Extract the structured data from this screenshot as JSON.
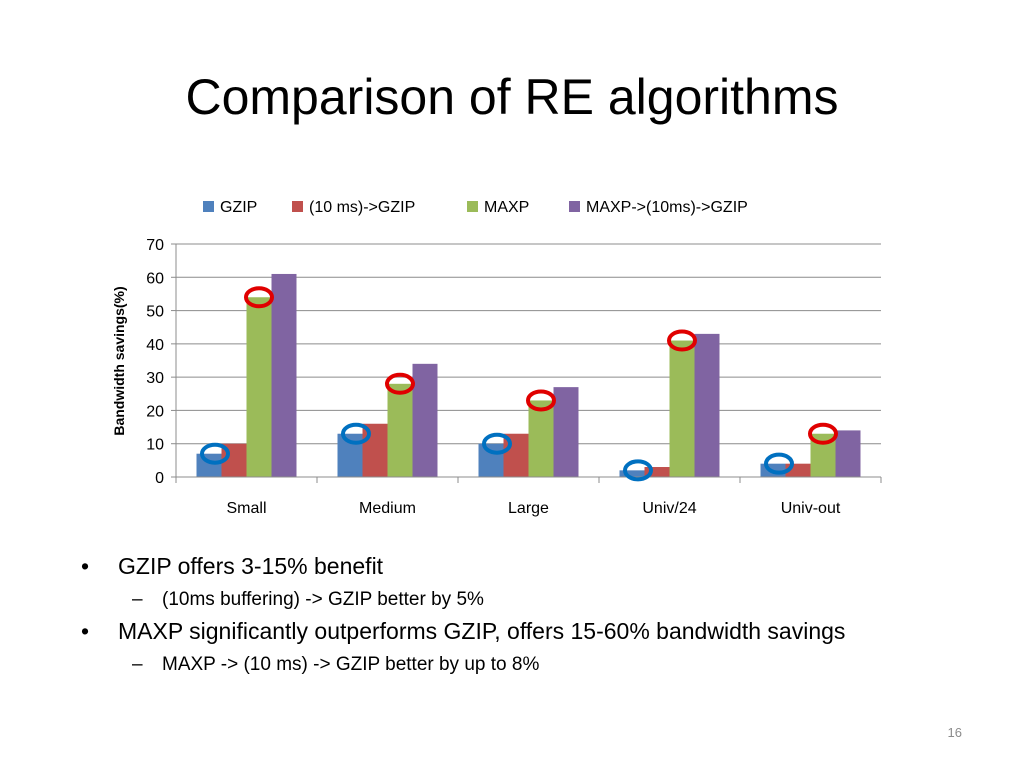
{
  "slide": {
    "title": "Comparison of RE algorithms",
    "page_number": "16"
  },
  "bullets": [
    {
      "text": "GZIP offers 3-15% benefit",
      "sub": [
        "(10ms buffering) -> GZIP better by 5%"
      ]
    },
    {
      "text": "MAXP significantly outperforms GZIP,  offers 15-60%  bandwidth savings",
      "sub": [
        "MAXP -> (10 ms) -> GZIP better by up to 8%"
      ]
    }
  ],
  "chart_data": {
    "type": "bar",
    "title": "",
    "xlabel": "",
    "ylabel": "Bandwidth savings(%)",
    "categories": [
      "Small",
      "Medium",
      "Large",
      "Univ/24",
      "Univ-out"
    ],
    "series": [
      {
        "name": "GZIP",
        "color": "#4f81bd",
        "values": [
          7,
          13,
          10,
          2,
          4
        ]
      },
      {
        "name": "(10 ms)->GZIP",
        "color": "#c0504d",
        "values": [
          10,
          16,
          13,
          3,
          4
        ]
      },
      {
        "name": "MAXP",
        "color": "#9bbb59",
        "values": [
          54,
          28,
          23,
          41,
          13
        ]
      },
      {
        "name": "MAXP->(10ms)->GZIP",
        "color": "#8064a2",
        "values": [
          61,
          34,
          27,
          43,
          14
        ]
      }
    ],
    "ylim": [
      0,
      70
    ],
    "yticks": [
      0,
      10,
      20,
      30,
      40,
      50,
      60,
      70
    ],
    "grid": true,
    "legend_position": "top",
    "annotations": {
      "blue_circles_on": "GZIP",
      "red_circles_on": "MAXP",
      "blue_color": "#0070c0",
      "red_color": "#e00000"
    }
  }
}
